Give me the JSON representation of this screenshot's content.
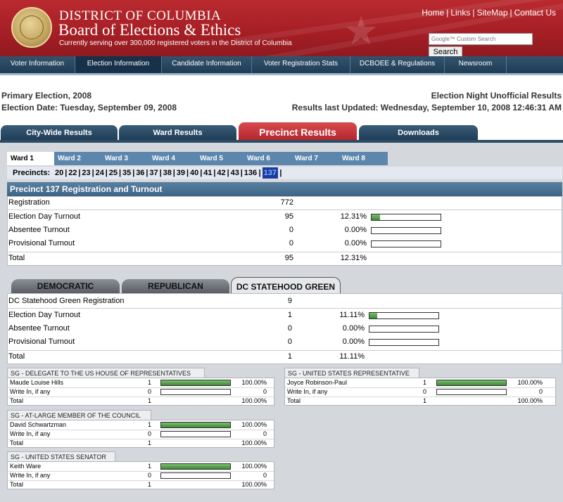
{
  "header": {
    "line1": "DISTRICT OF COLUMBIA",
    "line2": "Board of Elections & Ethics",
    "tagline": "Currently serving over 300,000 registered voters in the District of Columbia",
    "links": [
      "Home",
      "Links",
      "SiteMap",
      "Contact Us"
    ],
    "search_placeholder": "Google™ Custom Search",
    "search_button": "Search",
    "brand_color": "#a51e24"
  },
  "nav": {
    "items": [
      "Voter Information",
      "Election Information",
      "Candidate Information",
      "Voter Registration Stats",
      "DCBOEE & Regulations",
      "Newsroom"
    ],
    "active": "Election Information"
  },
  "election": {
    "name": "Primary Election, 2008",
    "date": "Election Date: Tuesday, September 09, 2008",
    "status": "Election Night Unofficial Results",
    "updated": "Results last Updated: Wednesday, September 10, 2008  12:46:31 AM"
  },
  "result_tabs": [
    "City-Wide Results",
    "Ward Results",
    "Precinct Results",
    "Downloads"
  ],
  "wards": [
    "Ward 1",
    "Ward 2",
    "Ward 3",
    "Ward 4",
    "Ward 5",
    "Ward 6",
    "Ward 7",
    "Ward 8"
  ],
  "precincts": {
    "label": "Precincts:",
    "items": [
      "20",
      "22",
      "23",
      "24",
      "25",
      "35",
      "36",
      "37",
      "38",
      "39",
      "40",
      "41",
      "42",
      "43",
      "136",
      "137"
    ],
    "selected": "137"
  },
  "turnout": {
    "title": "Precinct 137 Registration and Turnout",
    "rows": [
      {
        "label": "Registration",
        "count": "772",
        "pct": "",
        "fraction": null
      },
      {
        "label": "Election Day Turnout",
        "count": "95",
        "pct": "12.31%",
        "fraction": 0.1231
      },
      {
        "label": "Absentee Turnout",
        "count": "0",
        "pct": "0.00%",
        "fraction": 0
      },
      {
        "label": "Provisional Turnout",
        "count": "0",
        "pct": "0.00%",
        "fraction": 0
      },
      {
        "label": "Total",
        "count": "95",
        "pct": "12.31%",
        "fraction": null
      }
    ]
  },
  "party_tabs": [
    "DEMOCRATIC",
    "REPUBLICAN",
    "DC STATEHOOD GREEN"
  ],
  "party": {
    "rows": [
      {
        "label": "DC Statehood Green Registration",
        "count": "9",
        "pct": "",
        "fraction": null
      },
      {
        "label": "Election Day Turnout",
        "count": "1",
        "pct": "11.11%",
        "fraction": 0.1111
      },
      {
        "label": "Absentee Turnout",
        "count": "0",
        "pct": "0.00%",
        "fraction": 0
      },
      {
        "label": "Provisional Turnout",
        "count": "0",
        "pct": "0.00%",
        "fraction": 0
      },
      {
        "label": "Total",
        "count": "1",
        "pct": "11.11%",
        "fraction": null
      }
    ]
  },
  "contests": [
    {
      "title": "SG - DELEGATE TO THE US HOUSE OF REPRESENTATIVES",
      "rows": [
        {
          "name": "Maude Louise Hills",
          "votes": "1",
          "pct": "100.00%",
          "fraction": 1
        },
        {
          "name": "Write In, if any",
          "votes": "0",
          "pct": "0",
          "fraction": 0
        },
        {
          "name": "Total",
          "votes": "1",
          "pct": "100.00%",
          "fraction": null
        }
      ]
    },
    {
      "title": "SG - UNITED STATES REPRESENTATIVE",
      "rows": [
        {
          "name": "Joyce Robinson-Paul",
          "votes": "1",
          "pct": "100.00%",
          "fraction": 1
        },
        {
          "name": "Write In, if any",
          "votes": "0",
          "pct": "0",
          "fraction": 0
        },
        {
          "name": "Total",
          "votes": "1",
          "pct": "100.00%",
          "fraction": null
        }
      ]
    },
    {
      "title": "SG - AT-LARGE MEMBER OF THE COUNCIL",
      "rows": [
        {
          "name": "David Schwartzman",
          "votes": "1",
          "pct": "100.00%",
          "fraction": 1
        },
        {
          "name": "Write In, if any",
          "votes": "0",
          "pct": "0",
          "fraction": 0
        },
        {
          "name": "Total",
          "votes": "1",
          "pct": "100.00%",
          "fraction": null
        }
      ]
    },
    {
      "title": "SG - UNITED STATES SENATOR",
      "rows": [
        {
          "name": "Keith Ware",
          "votes": "1",
          "pct": "100.00%",
          "fraction": 1
        },
        {
          "name": "Write In, if any",
          "votes": "0",
          "pct": "0",
          "fraction": 0
        },
        {
          "name": "Total",
          "votes": "1",
          "pct": "100.00%",
          "fraction": null
        }
      ]
    }
  ]
}
